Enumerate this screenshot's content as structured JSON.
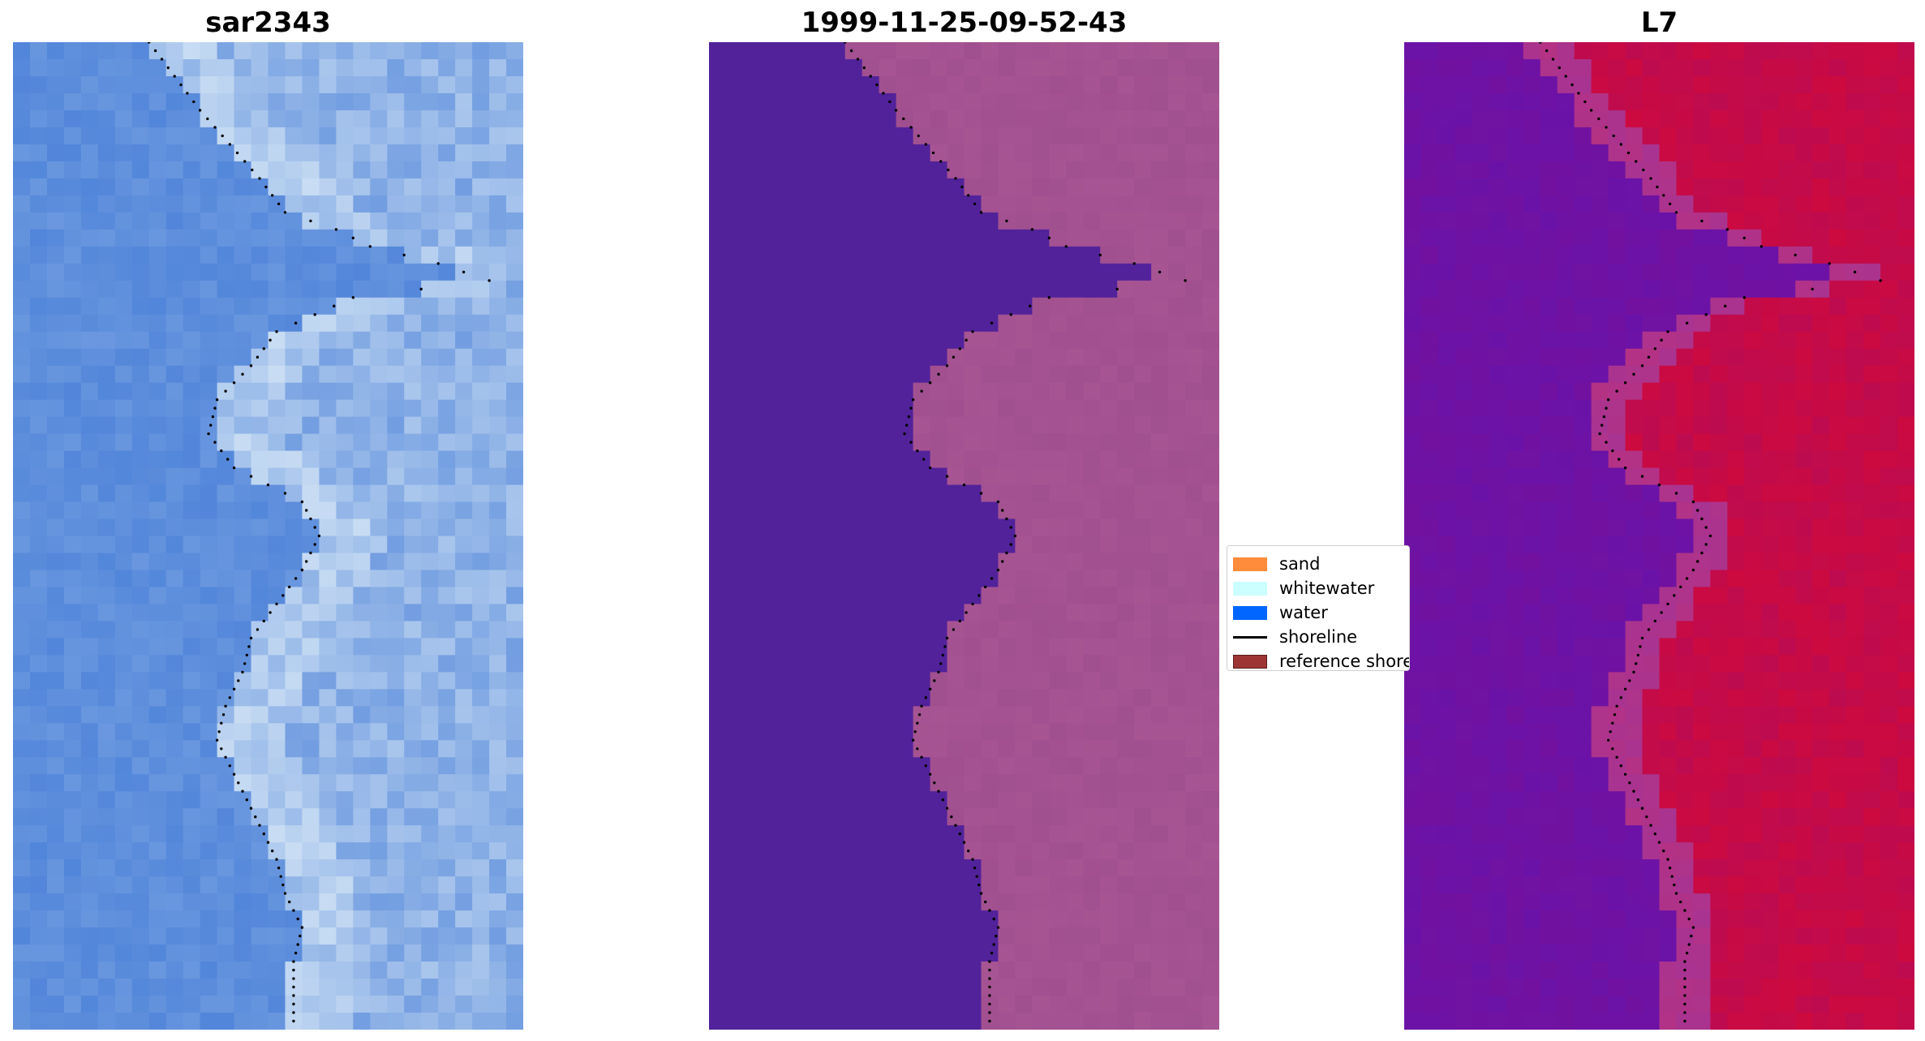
{
  "panels": [
    {
      "title": "sar2343",
      "style": "rgb"
    },
    {
      "title": "1999-11-25-09-52-43",
      "style": "classified"
    },
    {
      "title": "L7",
      "style": "mndwi"
    }
  ],
  "legend": {
    "items": [
      {
        "label": "sand",
        "color": "#ff8c3a",
        "kind": "patch"
      },
      {
        "label": "whitewater",
        "color": "#ccffff",
        "kind": "patch"
      },
      {
        "label": "water",
        "color": "#0066ff",
        "kind": "patch"
      },
      {
        "label": "shoreline",
        "color": "#000000",
        "kind": "line"
      },
      {
        "label": "reference shoreline",
        "color": "#9e3535",
        "kind": "patch"
      }
    ]
  },
  "colors": {
    "water_class": "#52229a",
    "sand_class": "#a04f8f",
    "rgb_water": "#4a80d8",
    "rgb_foam": "#e8f4fa",
    "mndwi_water": "#6a12a8",
    "mndwi_land": "#cc0a40",
    "shoreline_points": "#000000"
  }
}
